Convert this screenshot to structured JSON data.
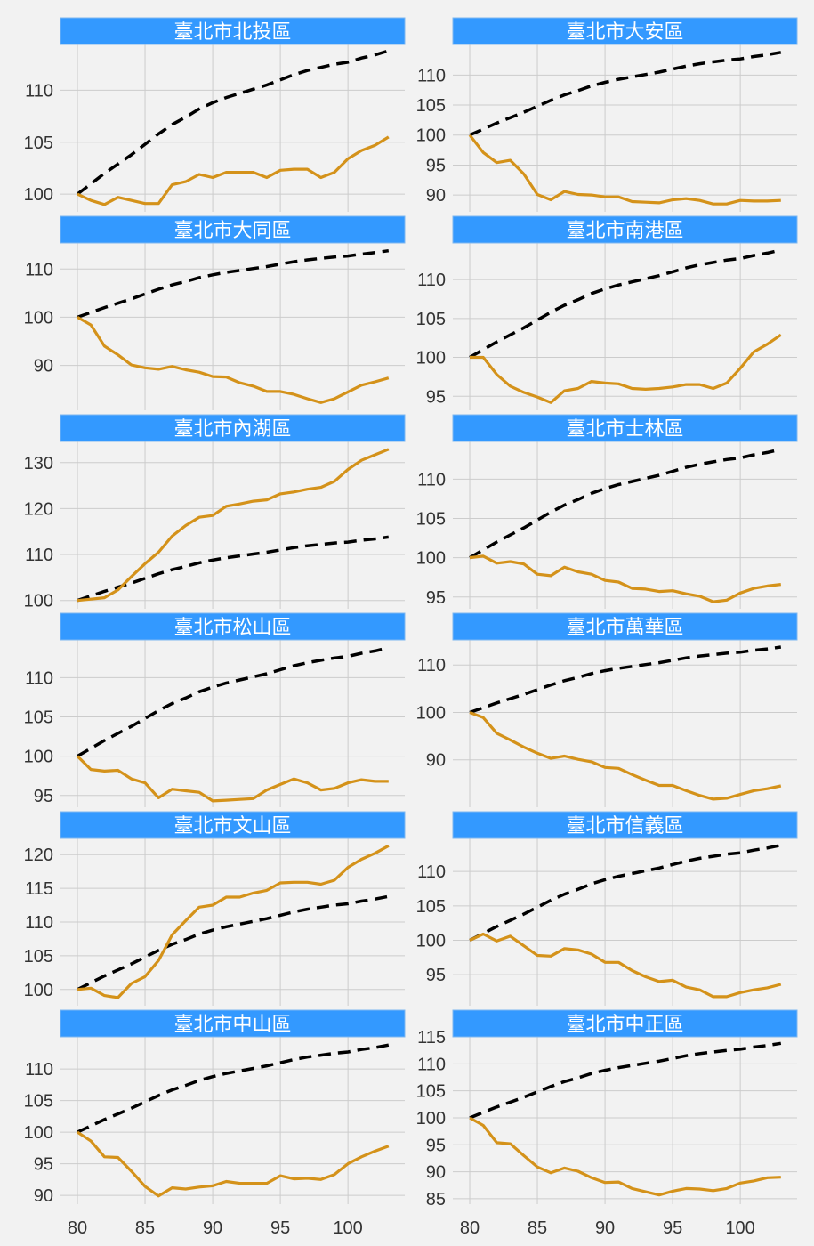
{
  "chart_data": {
    "type": "line",
    "layout": "small-multiples 6x2",
    "x": [
      80,
      81,
      82,
      83,
      84,
      85,
      86,
      87,
      88,
      89,
      90,
      91,
      92,
      93,
      94,
      95,
      96,
      97,
      98,
      99,
      100,
      101,
      102,
      103
    ],
    "xticks": [
      80,
      85,
      90,
      95,
      100
    ],
    "xlim": [
      78.75,
      104.2
    ],
    "grid": true,
    "colors": {
      "district": "#d4921a",
      "reference": "#000000",
      "title_bar": "#3399ff",
      "grid": "#cccccc"
    },
    "reference_series": {
      "style": "dashed",
      "values": [
        100,
        101.0,
        102.0,
        102.9,
        103.8,
        104.8,
        105.8,
        106.7,
        107.4,
        108.2,
        108.8,
        109.3,
        109.7,
        110.1,
        110.5,
        111.0,
        111.5,
        111.9,
        112.2,
        112.5,
        112.7,
        113.1,
        113.4,
        113.8
      ]
    },
    "panels": [
      {
        "title": "臺北市北投區",
        "ylim": [
          98.3,
          114.4
        ],
        "yticks": [
          100,
          105,
          110
        ],
        "values": [
          100,
          99.4,
          99.0,
          99.7,
          99.4,
          99.1,
          99.1,
          100.9,
          101.2,
          101.9,
          101.6,
          102.1,
          102.1,
          102.1,
          101.6,
          102.3,
          102.4,
          102.4,
          101.6,
          102.1,
          103.4,
          104.2,
          104.7,
          105.5
        ]
      },
      {
        "title": "臺北市大安區",
        "ylim": [
          87.2,
          115.1
        ],
        "yticks": [
          90,
          95,
          100,
          105,
          110
        ],
        "values": [
          100,
          97.1,
          95.4,
          95.8,
          93.5,
          90.1,
          89.2,
          90.6,
          90.1,
          90.0,
          89.7,
          89.7,
          88.9,
          88.8,
          88.7,
          89.2,
          89.4,
          89.1,
          88.5,
          88.5,
          89.1,
          89.0,
          89.0,
          89.1
        ]
      },
      {
        "title": "臺北市大同區",
        "ylim": [
          80.7,
          115.4
        ],
        "yticks": [
          90,
          100,
          110
        ],
        "values": [
          100,
          98.4,
          94.0,
          92.2,
          90.1,
          89.5,
          89.2,
          89.8,
          89.1,
          88.6,
          87.7,
          87.6,
          86.4,
          85.7,
          84.6,
          84.6,
          84.0,
          83.1,
          82.3,
          83.1,
          84.5,
          85.9,
          86.6,
          87.4
        ]
      },
      {
        "title": "臺北市南港區",
        "ylim": [
          93.2,
          114.7
        ],
        "yticks": [
          95,
          100,
          105,
          110
        ],
        "values": [
          100,
          100,
          97.8,
          96.3,
          95.5,
          94.9,
          94.2,
          95.7,
          96.0,
          96.9,
          96.7,
          96.6,
          96.0,
          95.9,
          96.0,
          96.2,
          96.5,
          96.5,
          96.0,
          96.7,
          98.6,
          100.7,
          101.7,
          102.9
        ]
      },
      {
        "title": "臺北市內湖區",
        "ylim": [
          98.2,
          134.6
        ],
        "yticks": [
          100,
          110,
          120,
          130
        ],
        "values": [
          100,
          100.3,
          100.6,
          102.3,
          105.2,
          108.0,
          110.5,
          114.0,
          116.3,
          118.1,
          118.5,
          120.5,
          121.0,
          121.6,
          121.9,
          123.2,
          123.6,
          124.2,
          124.6,
          125.9,
          128.5,
          130.5,
          131.7,
          132.9
        ]
      },
      {
        "title": "臺北市士林區",
        "ylim": [
          93.5,
          114.8
        ],
        "yticks": [
          95,
          100,
          105,
          110
        ],
        "values": [
          100,
          100.2,
          99.3,
          99.5,
          99.2,
          97.9,
          97.7,
          98.8,
          98.2,
          97.9,
          97.1,
          96.9,
          96.1,
          96.0,
          95.7,
          95.8,
          95.4,
          95.1,
          94.4,
          94.6,
          95.5,
          96.1,
          96.4,
          96.6
        ]
      },
      {
        "title": "臺北市松山區",
        "ylim": [
          93.5,
          114.8
        ],
        "yticks": [
          95,
          100,
          105,
          110
        ],
        "values": [
          100,
          98.3,
          98.1,
          98.2,
          97.1,
          96.6,
          94.7,
          95.8,
          95.6,
          95.4,
          94.3,
          94.4,
          94.5,
          94.6,
          95.7,
          96.4,
          97.1,
          96.6,
          95.7,
          95.9,
          96.6,
          97.0,
          96.8,
          96.8
        ]
      },
      {
        "title": "臺北市萬華區",
        "ylim": [
          80.0,
          115.3
        ],
        "yticks": [
          90,
          100,
          110
        ],
        "values": [
          100,
          98.9,
          95.6,
          94.2,
          92.7,
          91.4,
          90.3,
          90.8,
          90.1,
          89.6,
          88.4,
          88.2,
          86.9,
          85.7,
          84.6,
          84.6,
          83.5,
          82.5,
          81.7,
          81.9,
          82.7,
          83.5,
          83.9,
          84.5
        ]
      },
      {
        "title": "臺北市文山區",
        "ylim": [
          97.6,
          122.4
        ],
        "yticks": [
          100,
          105,
          110,
          115,
          120
        ],
        "values": [
          100,
          100.2,
          99.1,
          98.8,
          100.9,
          101.9,
          104.3,
          108.1,
          110.2,
          112.2,
          112.5,
          113.7,
          113.7,
          114.3,
          114.7,
          115.8,
          115.9,
          115.9,
          115.6,
          116.2,
          118.1,
          119.3,
          120.2,
          121.3
        ]
      },
      {
        "title": "臺北市信義區",
        "ylim": [
          90.5,
          114.8
        ],
        "yticks": [
          95,
          100,
          105,
          110
        ],
        "values": [
          100,
          100.9,
          99.9,
          100.6,
          99.2,
          97.8,
          97.7,
          98.8,
          98.6,
          98.0,
          96.8,
          96.8,
          95.6,
          94.7,
          94.0,
          94.2,
          93.2,
          92.8,
          91.8,
          91.8,
          92.4,
          92.8,
          93.1,
          93.6
        ]
      },
      {
        "title": "臺北市中山區",
        "ylim": [
          88.6,
          115.1
        ],
        "yticks": [
          90,
          95,
          100,
          105,
          110
        ],
        "values": [
          100,
          98.6,
          96.1,
          96.0,
          93.8,
          91.4,
          89.9,
          91.2,
          91.0,
          91.3,
          91.5,
          92.2,
          91.9,
          91.9,
          91.9,
          93.1,
          92.6,
          92.7,
          92.5,
          93.3,
          95.0,
          96.1,
          97.0,
          97.8
        ]
      },
      {
        "title": "臺北市中正區",
        "ylim": [
          84.0,
          115.0
        ],
        "yticks": [
          85,
          90,
          95,
          100,
          105,
          110,
          115
        ],
        "values": [
          100,
          98.6,
          95.4,
          95.2,
          93.0,
          90.9,
          89.8,
          90.7,
          90.1,
          88.9,
          88.0,
          88.1,
          86.9,
          86.3,
          85.7,
          86.4,
          86.9,
          86.8,
          86.5,
          86.9,
          87.9,
          88.3,
          88.9,
          89.0
        ]
      }
    ]
  }
}
